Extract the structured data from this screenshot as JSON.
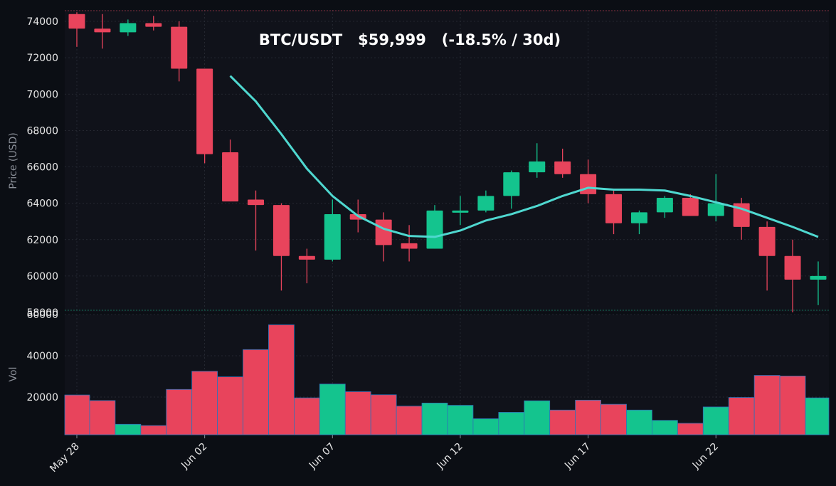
{
  "title": "BTC/USDT   $59,999   (-18.5% / 30d)",
  "chart_data": {
    "type": "candlestick",
    "ylabel": "Price (USD)",
    "ylim": [
      58000,
      74500
    ],
    "yticks": [
      58000,
      60000,
      62000,
      64000,
      66000,
      68000,
      70000,
      72000,
      74000
    ],
    "vol_ylabel": "Vol",
    "vol_ylim": [
      0,
      60000
    ],
    "vol_yticks": [
      20000,
      40000,
      60000
    ],
    "xtick_labels": [
      "May 28",
      "Jun 02",
      "Jun 07",
      "Jun 12",
      "Jun 17",
      "Jun 22"
    ],
    "xtick_index": [
      0,
      5,
      10,
      15,
      20,
      25
    ],
    "grid": true,
    "colors": {
      "up": "#14c48e",
      "down": "#e8445c",
      "ma": "#4fd8d0",
      "vol_edge": "#2f72b8",
      "bg": "#10121a",
      "page": "#0b0e14"
    },
    "candles": [
      {
        "date": "May 28",
        "open": 74400,
        "high": 74500,
        "low": 72600,
        "close": 73600,
        "volume": 21000
      },
      {
        "date": "May 29",
        "open": 73600,
        "high": 74400,
        "low": 72500,
        "close": 73400,
        "volume": 18300
      },
      {
        "date": "May 30",
        "open": 73400,
        "high": 74100,
        "low": 73200,
        "close": 73900,
        "volume": 6800
      },
      {
        "date": "May 31",
        "open": 73900,
        "high": 74300,
        "low": 73500,
        "close": 73700,
        "volume": 6200
      },
      {
        "date": "Jun 01",
        "open": 73700,
        "high": 74000,
        "low": 70700,
        "close": 71400,
        "volume": 23700
      },
      {
        "date": "Jun 02",
        "open": 71400,
        "high": 71400,
        "low": 66200,
        "close": 66700,
        "volume": 32500
      },
      {
        "date": "Jun 03",
        "open": 66800,
        "high": 67500,
        "low": 64100,
        "close": 64100,
        "volume": 29800
      },
      {
        "date": "Jun 04",
        "open": 64200,
        "high": 64700,
        "low": 61400,
        "close": 63900,
        "volume": 43000
      },
      {
        "date": "Jun 05",
        "open": 63900,
        "high": 64000,
        "low": 59200,
        "close": 61100,
        "volume": 55000
      },
      {
        "date": "Jun 06",
        "open": 61100,
        "high": 61500,
        "low": 59600,
        "close": 60900,
        "volume": 19600
      },
      {
        "date": "Jun 07",
        "open": 60900,
        "high": 64200,
        "low": 60800,
        "close": 63400,
        "volume": 26300
      },
      {
        "date": "Jun 08",
        "open": 63400,
        "high": 64200,
        "low": 62400,
        "close": 63100,
        "volume": 22600
      },
      {
        "date": "Jun 09",
        "open": 63100,
        "high": 63500,
        "low": 60800,
        "close": 61700,
        "volume": 21100
      },
      {
        "date": "Jun 10",
        "open": 61800,
        "high": 62800,
        "low": 60800,
        "close": 61500,
        "volume": 15600
      },
      {
        "date": "Jun 11",
        "open": 61500,
        "high": 63900,
        "low": 61500,
        "close": 63600,
        "volume": 17100
      },
      {
        "date": "Jun 12",
        "open": 63600,
        "high": 64400,
        "low": 62800,
        "close": 63600,
        "volume": 16000
      },
      {
        "date": "Jun 13",
        "open": 63600,
        "high": 64700,
        "low": 63500,
        "close": 64400,
        "volume": 9500
      },
      {
        "date": "Jun 14",
        "open": 64400,
        "high": 65800,
        "low": 63700,
        "close": 65700,
        "volume": 12600
      },
      {
        "date": "Jun 15",
        "open": 65700,
        "high": 67300,
        "low": 65400,
        "close": 66300,
        "volume": 18200
      },
      {
        "date": "Jun 16",
        "open": 66300,
        "high": 67000,
        "low": 65400,
        "close": 65600,
        "volume": 13700
      },
      {
        "date": "Jun 17",
        "open": 65600,
        "high": 66400,
        "low": 64000,
        "close": 64500,
        "volume": 18500
      },
      {
        "date": "Jun 18",
        "open": 64500,
        "high": 64700,
        "low": 62300,
        "close": 62900,
        "volume": 16500
      },
      {
        "date": "Jun 19",
        "open": 62900,
        "high": 63600,
        "low": 62300,
        "close": 63500,
        "volume": 13700
      },
      {
        "date": "Jun 20",
        "open": 63500,
        "high": 64400,
        "low": 63200,
        "close": 64300,
        "volume": 8700
      },
      {
        "date": "Jun 21",
        "open": 64300,
        "high": 64500,
        "low": 63300,
        "close": 63300,
        "volume": 7300
      },
      {
        "date": "Jun 22",
        "open": 63300,
        "high": 65600,
        "low": 63000,
        "close": 64000,
        "volume": 15200
      },
      {
        "date": "Jun 23",
        "open": 64000,
        "high": 64300,
        "low": 62000,
        "close": 62700,
        "volume": 19800
      },
      {
        "date": "Jun 24",
        "open": 62700,
        "high": 63000,
        "low": 59200,
        "close": 61100,
        "volume": 30500
      },
      {
        "date": "Jun 25",
        "open": 61100,
        "high": 62000,
        "low": 58000,
        "close": 59800,
        "volume": 30200
      },
      {
        "date": "Jun 26",
        "open": 59800,
        "high": 60800,
        "low": 58400,
        "close": 60000,
        "volume": 19600
      }
    ],
    "ma_line": [
      {
        "date": "Jun 03",
        "value": 71000
      },
      {
        "date": "Jun 04",
        "value": 69600
      },
      {
        "date": "Jun 05",
        "value": 67800
      },
      {
        "date": "Jun 06",
        "value": 65900
      },
      {
        "date": "Jun 07",
        "value": 64400
      },
      {
        "date": "Jun 08",
        "value": 63300
      },
      {
        "date": "Jun 09",
        "value": 62600
      },
      {
        "date": "Jun 10",
        "value": 62200
      },
      {
        "date": "Jun 11",
        "value": 62150
      },
      {
        "date": "Jun 12",
        "value": 62500
      },
      {
        "date": "Jun 13",
        "value": 63050
      },
      {
        "date": "Jun 14",
        "value": 63400
      },
      {
        "date": "Jun 15",
        "value": 63850
      },
      {
        "date": "Jun 16",
        "value": 64400
      },
      {
        "date": "Jun 17",
        "value": 64850
      },
      {
        "date": "Jun 18",
        "value": 64750
      },
      {
        "date": "Jun 19",
        "value": 64750
      },
      {
        "date": "Jun 20",
        "value": 64700
      },
      {
        "date": "Jun 21",
        "value": 64400
      },
      {
        "date": "Jun 22",
        "value": 64050
      },
      {
        "date": "Jun 23",
        "value": 63700
      },
      {
        "date": "Jun 24",
        "value": 63200
      },
      {
        "date": "Jun 25",
        "value": 62700
      },
      {
        "date": "Jun 26",
        "value": 62150
      }
    ]
  }
}
